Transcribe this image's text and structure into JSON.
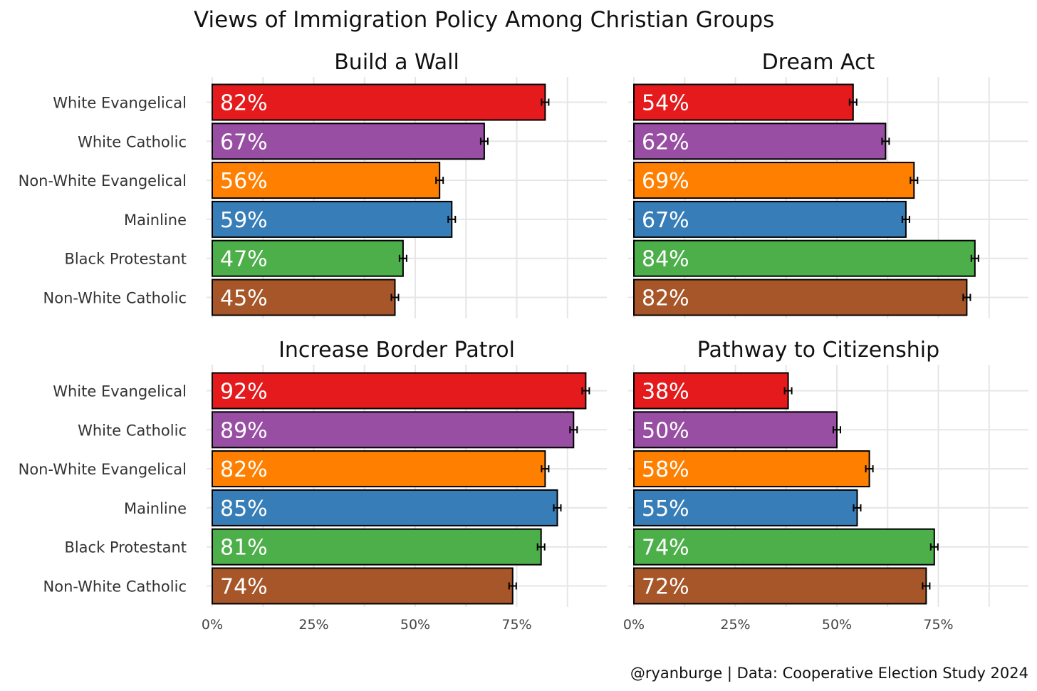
{
  "title": "Views of Immigration Policy Among Christian Groups",
  "caption": "@ryanburge | Data: Cooperative Election Study 2024",
  "chart_data": {
    "type": "bar",
    "orientation": "horizontal",
    "categories": [
      "White Evangelical",
      "White Catholic",
      "Non-White Evangelical",
      "Mainline",
      "Black Protestant",
      "Non-White Catholic"
    ],
    "colors": [
      "#E41A1C",
      "#984EA3",
      "#FF7F00",
      "#377EB8",
      "#4DAF4A",
      "#A65628"
    ],
    "x_ticks": [
      "0%",
      "25%",
      "50%",
      "75%"
    ],
    "xlim": [
      0,
      0.97
    ],
    "grid": true,
    "error_bars": true,
    "panels": [
      {
        "title": "Build a Wall",
        "values": [
          0.82,
          0.67,
          0.56,
          0.59,
          0.47,
          0.45
        ],
        "labels": [
          "82%",
          "67%",
          "56%",
          "59%",
          "47%",
          "45%"
        ]
      },
      {
        "title": "Dream Act",
        "values": [
          0.54,
          0.62,
          0.69,
          0.67,
          0.84,
          0.82
        ],
        "labels": [
          "54%",
          "62%",
          "69%",
          "67%",
          "84%",
          "82%"
        ]
      },
      {
        "title": "Increase Border Patrol",
        "values": [
          0.92,
          0.89,
          0.82,
          0.85,
          0.81,
          0.74
        ],
        "labels": [
          "92%",
          "89%",
          "82%",
          "85%",
          "81%",
          "74%"
        ]
      },
      {
        "title": "Pathway to Citizenship",
        "values": [
          0.38,
          0.5,
          0.58,
          0.55,
          0.74,
          0.72
        ],
        "labels": [
          "38%",
          "50%",
          "58%",
          "55%",
          "74%",
          "72%"
        ]
      }
    ]
  }
}
